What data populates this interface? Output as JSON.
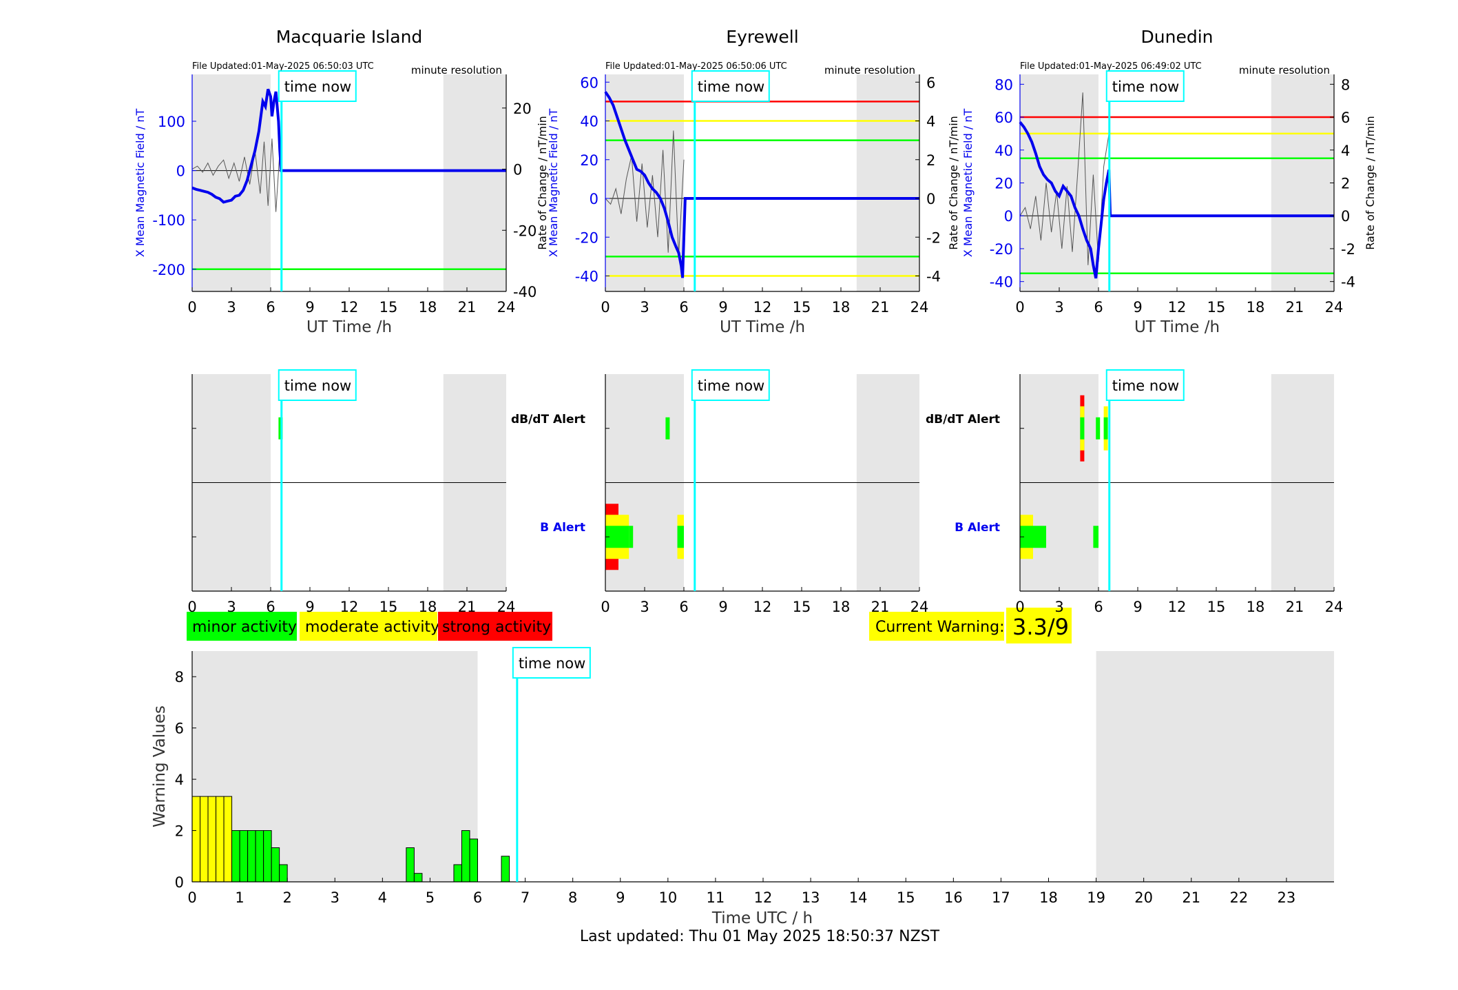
{
  "colors": {
    "blue": "#0000ee",
    "red": "#ff0000",
    "yellow": "#ffff00",
    "green": "#00ff00",
    "cyan": "#00ffff",
    "night": "#e6e6e6"
  },
  "header": {
    "file_updated_prefix": "File Updated:",
    "resolution": "minute resolution",
    "time_now": "time now"
  },
  "stations": [
    {
      "name": "Macquarie Island",
      "file_updated": "File Updated:01-May-2025 06:50:03 UTC",
      "time_now_h": 6.83,
      "night_h": [
        [
          0,
          6
        ],
        [
          19.2,
          24
        ]
      ]
    },
    {
      "name": "Eyrewell",
      "file_updated": "File Updated:01-May-2025 06:50:06 UTC",
      "time_now_h": 6.83,
      "night_h": [
        [
          0,
          6
        ],
        [
          19.2,
          24
        ]
      ]
    },
    {
      "name": "Dunedin",
      "file_updated": "File Updated:01-May-2025 06:49:02 UTC",
      "time_now_h": 6.83,
      "night_h": [
        [
          0,
          6
        ],
        [
          19.2,
          24
        ]
      ]
    }
  ],
  "alert_labels": {
    "dbdt": "dB/dT Alert",
    "b": "B Alert"
  },
  "legend": {
    "minor": "minor activity",
    "moderate": "moderate activity",
    "strong": "strong activity"
  },
  "current_warning": {
    "label": "Current Warning:",
    "value": "3.3/9"
  },
  "footer": {
    "last_updated": "Last updated: Thu 01 May 2025 18:50:37 NZST"
  },
  "chart_data": [
    {
      "type": "line",
      "title": "Macquarie Island",
      "xlabel": "UT Time /h",
      "ylabel": "X Mean Magnetic Field / nT",
      "xlim": [
        0,
        24
      ],
      "xticks": [
        0,
        3,
        6,
        9,
        12,
        15,
        18,
        21,
        24
      ],
      "ylim": [
        -245,
        195
      ],
      "yticks": [
        -200,
        -100,
        0,
        100
      ],
      "y2lim": [
        -40,
        31
      ],
      "y2ticks": [
        -40,
        -20,
        0,
        20
      ],
      "threshold_lines": [
        {
          "y": -200,
          "color": "green"
        }
      ],
      "series": [
        {
          "role": "field",
          "x": [
            0,
            0.3,
            0.6,
            0.9,
            1.2,
            1.5,
            1.8,
            2.1,
            2.4,
            2.7,
            3.0,
            3.3,
            3.6,
            3.9,
            4.2,
            4.5,
            4.8,
            5.1,
            5.4,
            5.6,
            5.8,
            6.0,
            6.1,
            6.25,
            6.4,
            6.5,
            6.6,
            6.7,
            6.8,
            7.0,
            24
          ],
          "y": [
            -35,
            -38,
            -40,
            -42,
            -44,
            -48,
            -54,
            -57,
            -64,
            -62,
            -60,
            -52,
            -50,
            -40,
            -20,
            10,
            40,
            80,
            140,
            130,
            165,
            150,
            110,
            140,
            160,
            130,
            100,
            40,
            0,
            0,
            0
          ]
        },
        {
          "role": "rate_of_change",
          "x": [
            0,
            0.4,
            0.8,
            1.2,
            1.6,
            2.0,
            2.4,
            2.8,
            3.2,
            3.6,
            4.0,
            4.4,
            4.8,
            5.2,
            5.5,
            5.8,
            6.1,
            6.4,
            6.7
          ],
          "y": [
            0,
            1,
            -1,
            2,
            -2,
            1,
            3,
            -3,
            2,
            -4,
            4,
            -5,
            6,
            -8,
            9,
            -12,
            10,
            -14,
            6
          ]
        }
      ],
      "alerts": {
        "dbdt": [
          {
            "start": 6.6,
            "end": 6.9,
            "level": 1
          }
        ],
        "b": []
      }
    },
    {
      "type": "line",
      "title": "Eyrewell",
      "xlabel": "UT Time /h",
      "ylabel": "X Mean Magnetic Field / nT",
      "xlim": [
        0,
        24
      ],
      "xticks": [
        0,
        3,
        6,
        9,
        12,
        15,
        18,
        21,
        24
      ],
      "ylim": [
        -48,
        64
      ],
      "yticks": [
        -40,
        -20,
        0,
        20,
        40,
        60
      ],
      "y2lim": [
        -4.8,
        6.4
      ],
      "y2ticks": [
        -4,
        -2,
        0,
        2,
        4,
        6
      ],
      "threshold_lines": [
        {
          "y": 50,
          "color": "red"
        },
        {
          "y": 40,
          "color": "yellow"
        },
        {
          "y": 30,
          "color": "green"
        },
        {
          "y": -30,
          "color": "green"
        },
        {
          "y": -40,
          "color": "yellow"
        }
      ],
      "series": [
        {
          "role": "field",
          "x": [
            0,
            0.3,
            0.6,
            0.9,
            1.2,
            1.5,
            1.8,
            2.1,
            2.4,
            2.7,
            3.0,
            3.3,
            3.6,
            3.9,
            4.2,
            4.5,
            4.8,
            5.1,
            5.4,
            5.6,
            5.8,
            5.9,
            6.0,
            6.1,
            24
          ],
          "y": [
            55,
            52,
            48,
            42,
            36,
            30,
            25,
            20,
            15,
            14,
            12,
            8,
            5,
            3,
            0,
            -5,
            -12,
            -20,
            -25,
            -28,
            -35,
            -41,
            -20,
            0,
            0
          ]
        },
        {
          "role": "rate_of_change",
          "x": [
            0,
            0.4,
            0.8,
            1.2,
            1.6,
            2.0,
            2.4,
            2.8,
            3.2,
            3.6,
            4.0,
            4.4,
            4.8,
            5.2,
            5.6,
            6.0
          ],
          "y": [
            0,
            -0.3,
            0.5,
            -0.8,
            1.0,
            2.2,
            -1.2,
            1.8,
            -1.5,
            1.2,
            -2.0,
            2.5,
            -2.8,
            3.5,
            -3.0,
            2.0
          ]
        }
      ],
      "alerts": {
        "dbdt": [
          {
            "start": 4.6,
            "end": 4.9,
            "level": 1
          }
        ],
        "b": [
          {
            "start": 0,
            "end": 1.0,
            "level": 3
          },
          {
            "start": 1.0,
            "end": 1.8,
            "level": 2
          },
          {
            "start": 1.8,
            "end": 2.1,
            "level": 1
          },
          {
            "start": 5.5,
            "end": 6.0,
            "level": 2
          }
        ]
      }
    },
    {
      "type": "line",
      "title": "Dunedin",
      "xlabel": "UT Time /h",
      "ylabel": "X Mean Magnetic Field / nT",
      "xlim": [
        0,
        24
      ],
      "xticks": [
        0,
        3,
        6,
        9,
        12,
        15,
        18,
        21,
        24
      ],
      "ylim": [
        -46,
        86
      ],
      "yticks": [
        -40,
        -20,
        0,
        20,
        40,
        60,
        80
      ],
      "y2lim": [
        -4.6,
        8.6
      ],
      "y2ticks": [
        -4,
        -2,
        0,
        2,
        4,
        6,
        8
      ],
      "threshold_lines": [
        {
          "y": 60,
          "color": "red"
        },
        {
          "y": 50,
          "color": "yellow"
        },
        {
          "y": 35,
          "color": "green"
        },
        {
          "y": -35,
          "color": "green"
        }
      ],
      "series": [
        {
          "role": "field",
          "x": [
            0,
            0.3,
            0.6,
            0.9,
            1.2,
            1.5,
            1.8,
            2.1,
            2.4,
            2.7,
            3.0,
            3.3,
            3.6,
            3.9,
            4.2,
            4.5,
            4.8,
            5.1,
            5.4,
            5.6,
            5.8,
            6.0,
            6.2,
            6.4,
            6.6,
            6.8,
            6.9,
            24
          ],
          "y": [
            57,
            54,
            50,
            45,
            38,
            30,
            25,
            22,
            20,
            15,
            12,
            18,
            15,
            12,
            5,
            0,
            -8,
            -15,
            -20,
            -30,
            -38,
            -20,
            -5,
            10,
            20,
            28,
            0,
            0
          ]
        },
        {
          "role": "rate_of_change",
          "x": [
            0,
            0.4,
            0.8,
            1.2,
            1.6,
            2.0,
            2.4,
            2.8,
            3.2,
            3.6,
            4.0,
            4.4,
            4.8,
            5.2,
            5.6,
            6.0,
            6.4,
            6.8
          ],
          "y": [
            0,
            0.5,
            -0.8,
            1.2,
            -1.5,
            2.0,
            -1.0,
            1.5,
            -2.0,
            1.8,
            -2.2,
            2.5,
            7.5,
            -3.0,
            2.5,
            -2.8,
            3.0,
            5.0
          ]
        }
      ],
      "alerts": {
        "dbdt": [
          {
            "start": 4.6,
            "end": 4.9,
            "level": 3
          },
          {
            "start": 5.8,
            "end": 6.1,
            "level": 1
          },
          {
            "start": 6.4,
            "end": 6.7,
            "level": 2
          }
        ],
        "b": [
          {
            "start": 0,
            "end": 1.0,
            "level": 2
          },
          {
            "start": 1.0,
            "end": 2.0,
            "level": 1
          },
          {
            "start": 5.6,
            "end": 6.0,
            "level": 1
          }
        ]
      }
    },
    {
      "type": "bar",
      "xlabel": "Time UTC / h",
      "ylabel": "Warning Values",
      "xlim": [
        0,
        24
      ],
      "xticks": [
        0,
        1,
        2,
        3,
        4,
        5,
        6,
        7,
        8,
        9,
        10,
        11,
        12,
        13,
        14,
        15,
        16,
        17,
        18,
        19,
        20,
        21,
        22,
        23
      ],
      "ylim": [
        0,
        9
      ],
      "yticks": [
        0,
        2,
        4,
        6,
        8
      ],
      "night_h": [
        [
          0,
          6
        ],
        [
          19,
          24
        ]
      ],
      "time_now_h": 6.83,
      "bin_width_h": 0.1667,
      "bars": [
        {
          "x": 0.0,
          "value": 3.33,
          "level": 2
        },
        {
          "x": 0.1667,
          "value": 3.33,
          "level": 2
        },
        {
          "x": 0.3333,
          "value": 3.33,
          "level": 2
        },
        {
          "x": 0.5,
          "value": 3.33,
          "level": 2
        },
        {
          "x": 0.6667,
          "value": 3.33,
          "level": 2
        },
        {
          "x": 0.8333,
          "value": 2,
          "level": 1
        },
        {
          "x": 1.0,
          "value": 2,
          "level": 1
        },
        {
          "x": 1.1667,
          "value": 2,
          "level": 1
        },
        {
          "x": 1.3333,
          "value": 2,
          "level": 1
        },
        {
          "x": 1.5,
          "value": 2,
          "level": 1
        },
        {
          "x": 1.6667,
          "value": 1.33,
          "level": 1
        },
        {
          "x": 1.8333,
          "value": 0.67,
          "level": 1
        },
        {
          "x": 4.5,
          "value": 1.33,
          "level": 1
        },
        {
          "x": 4.6667,
          "value": 0.33,
          "level": 1
        },
        {
          "x": 5.5,
          "value": 0.67,
          "level": 1
        },
        {
          "x": 5.6667,
          "value": 2,
          "level": 1
        },
        {
          "x": 5.8333,
          "value": 1.67,
          "level": 1
        },
        {
          "x": 6.5,
          "value": 1,
          "level": 1
        }
      ]
    }
  ]
}
